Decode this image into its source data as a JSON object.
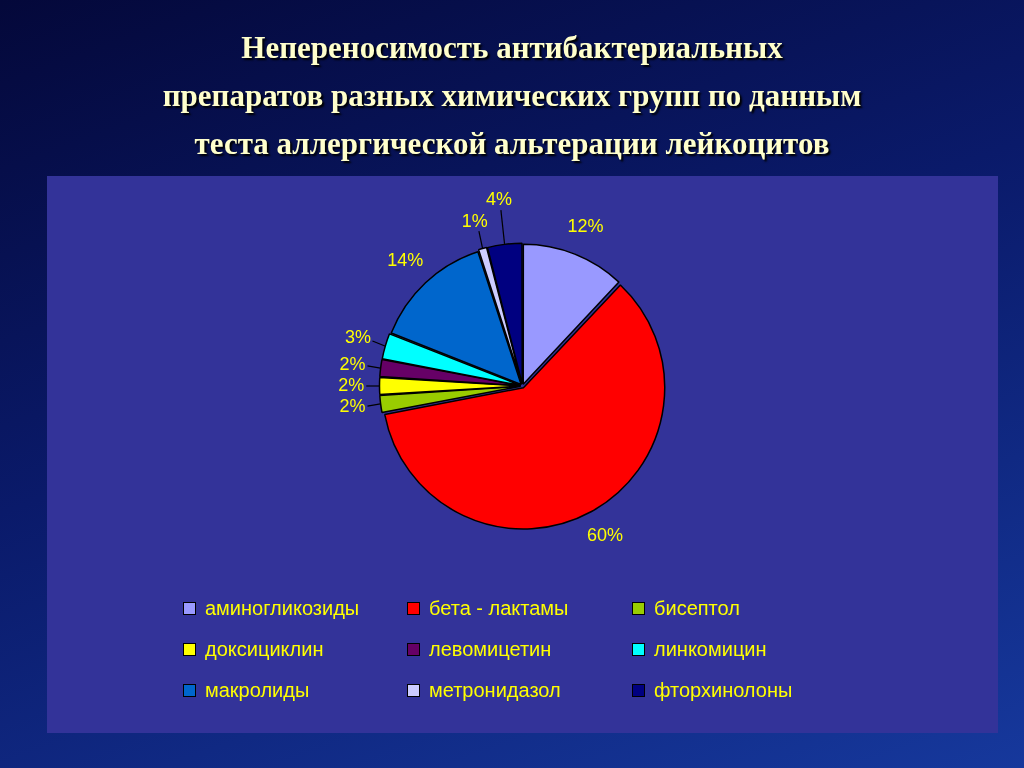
{
  "chart_data": {
    "type": "pie",
    "title": "Непереносимость антибактериальных\nпрепаратов разных химических групп по данным\nтеста аллергической альтерации лейкоцитов",
    "categories": [
      "аминогликозиды",
      "бета - лактамы",
      "бисептол",
      "доксициклин",
      "левомицетин",
      "линкомицин",
      "макролиды",
      "метронидазол",
      "фторхинолоны"
    ],
    "values": [
      12,
      60,
      2,
      2,
      2,
      3,
      14,
      1,
      4
    ],
    "colors": [
      "#9999ff",
      "#ff0000",
      "#99cc00",
      "#ffff00",
      "#660066",
      "#00ffff",
      "#0066cc",
      "#ccccff",
      "#000080"
    ],
    "value_labels": [
      "12%",
      "60%",
      "2%",
      "2%",
      "2%",
      "3%",
      "14%",
      "1%",
      "4%"
    ],
    "legend": "bottom"
  }
}
